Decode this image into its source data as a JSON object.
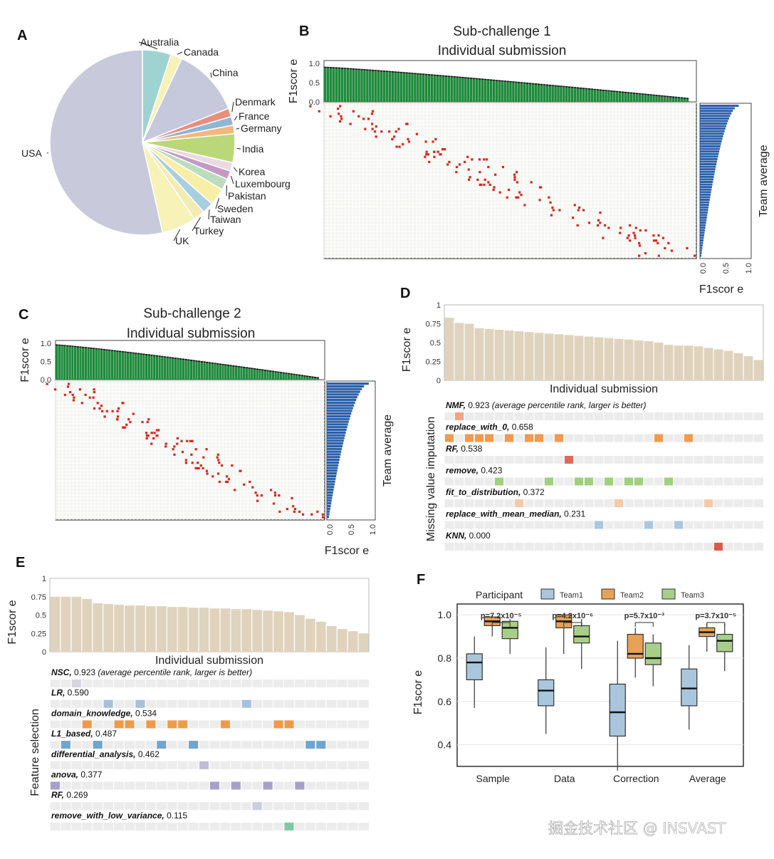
{
  "panels": {
    "A": {
      "letter": "A"
    },
    "B": {
      "letter": "B",
      "title_line1": "Sub-challenge 1",
      "title_line2": "Individual submission",
      "y_label": "F1scor e",
      "side_label": "Team average",
      "bottom_label": "F1scor e",
      "top_ticks": [
        "1.0",
        "0.5",
        "0.0"
      ],
      "side_ticks": [
        "0.0",
        "0.5",
        "1.0"
      ]
    },
    "C": {
      "letter": "C",
      "title_line1": "Sub-challenge 2",
      "title_line2": "Individual submission",
      "y_label": "F1scor e",
      "side_label": "Team average",
      "bottom_label": "F1scor e",
      "top_ticks": [
        "1.0",
        "0.5",
        "0.0"
      ],
      "side_ticks": [
        "0.0",
        "0.5",
        "1.0"
      ]
    },
    "D": {
      "letter": "D",
      "y_label": "F1scor e",
      "x_label": "Individual submission",
      "side_label": "Missing value imputation",
      "y_ticks": [
        "1",
        "0.75",
        "0.5",
        "0.25",
        "0"
      ],
      "note": "(average percentile rank, larger is better)"
    },
    "E": {
      "letter": "E",
      "y_label": "F1scor e",
      "x_label": "Individual submission",
      "side_label": "Feature selection",
      "y_ticks": [
        "1",
        "0.75",
        "0.5",
        "0.25",
        "0"
      ],
      "note": "(average percentile rank, larger is better)"
    },
    "F": {
      "letter": "F",
      "legend_title": "Participant",
      "y_label": "F1scor e",
      "y_ticks": [
        "1.0",
        "0.8",
        "0.6",
        "0.4"
      ]
    }
  },
  "watermark": "掘金技术社区 @ INSVAST",
  "chart_data": [
    {
      "panel": "A",
      "type": "pie",
      "labels": [
        "Australia",
        "Canada",
        "China",
        "Denmark",
        "France",
        "Germany",
        "India",
        "Korea",
        "Luxembourg",
        "Pakistan",
        "Sweden",
        "Taiwan",
        "Turkey",
        "UK",
        "USA"
      ],
      "values": [
        5,
        2,
        12,
        1.5,
        1.5,
        1.5,
        5,
        1.5,
        1.5,
        2,
        3,
        2,
        2,
        6,
        53.5
      ],
      "colors": [
        "#9fd3d2",
        "#f6f2b8",
        "#c6c8dc",
        "#e88e7f",
        "#8eb5d4",
        "#f2b87a",
        "#bad77a",
        "#ead9e2",
        "#c49ac4",
        "#bcddbd",
        "#f7efa8",
        "#a7cfe0",
        "#f3ecb2",
        "#f6f2b8",
        "#c8cadc"
      ]
    },
    {
      "panel": "B",
      "type": "bar",
      "x_label": "",
      "y_label": "F1scor e",
      "ylim": [
        0,
        1.0
      ],
      "submission_scores_start": 0.92,
      "submission_scores_end": 0.08,
      "n_submissions": 130,
      "team_average_start": 0.85,
      "team_average_end": 0.03,
      "n_teams": 60
    },
    {
      "panel": "C",
      "type": "bar",
      "x_label": "",
      "y_label": "F1scor e",
      "ylim": [
        0,
        1.0
      ],
      "submission_scores_start": 0.98,
      "submission_scores_end": 0.04,
      "n_submissions": 100,
      "team_average_start": 0.98,
      "team_average_end": 0.05,
      "n_teams": 50
    },
    {
      "panel": "D",
      "type": "bar",
      "x_label": "Individual submission",
      "y_label": "F1scor e",
      "ylim": [
        0,
        1
      ],
      "values": [
        0.83,
        0.76,
        0.75,
        0.69,
        0.68,
        0.67,
        0.66,
        0.65,
        0.64,
        0.63,
        0.62,
        0.61,
        0.6,
        0.59,
        0.58,
        0.57,
        0.56,
        0.55,
        0.54,
        0.53,
        0.52,
        0.5,
        0.47,
        0.46,
        0.46,
        0.45,
        0.43,
        0.41,
        0.39,
        0.36,
        0.32,
        0.27
      ],
      "methods": [
        {
          "name": "NMF",
          "score": "0.923",
          "color": "#f2a482",
          "marks": [
            1
          ]
        },
        {
          "name": "replace_with_0",
          "score": "0.658",
          "color": "#f29a4d",
          "marks": [
            0,
            2,
            3,
            4,
            6,
            8,
            9,
            11,
            21,
            24
          ]
        },
        {
          "name": "RF",
          "score": "0.538",
          "color": "#e06a5a",
          "marks": [
            12
          ]
        },
        {
          "name": "remove",
          "score": "0.423",
          "color": "#9fd07d",
          "marks": [
            5,
            10,
            13,
            14,
            16,
            18,
            19,
            22
          ]
        },
        {
          "name": "fit_to_distribution",
          "score": "0.372",
          "color": "#f7c9a7",
          "marks": [
            7,
            17,
            26
          ]
        },
        {
          "name": "replace_with_mean_median",
          "score": "0.231",
          "color": "#a8c7e0",
          "marks": [
            15,
            20,
            23
          ]
        },
        {
          "name": "KNN",
          "score": "0.000",
          "color": "#dd5a4a",
          "marks": [
            27
          ]
        }
      ]
    },
    {
      "panel": "E",
      "type": "bar",
      "x_label": "Individual submission",
      "y_label": "F1scor e",
      "ylim": [
        0,
        1
      ],
      "values": [
        0.75,
        0.75,
        0.75,
        0.72,
        0.66,
        0.65,
        0.64,
        0.63,
        0.63,
        0.62,
        0.62,
        0.61,
        0.61,
        0.6,
        0.6,
        0.59,
        0.59,
        0.58,
        0.58,
        0.57,
        0.56,
        0.55,
        0.54,
        0.5,
        0.45,
        0.41,
        0.35,
        0.31,
        0.28,
        0.25
      ],
      "methods": [
        {
          "name": "NSC",
          "score": "0.923",
          "color": "#d3d6df",
          "marks": [
            2
          ]
        },
        {
          "name": "LR",
          "score": "0.590",
          "color": "#a6c1dd",
          "marks": [
            5,
            8,
            18
          ]
        },
        {
          "name": "domain_knowledge",
          "score": "0.534",
          "color": "#f09a48",
          "marks": [
            3,
            6,
            7,
            9,
            11,
            12,
            16,
            21,
            22
          ]
        },
        {
          "name": "L1_based",
          "score": "0.487",
          "color": "#6ea6cf",
          "marks": [
            1,
            4,
            10,
            13,
            24,
            25
          ]
        },
        {
          "name": "differential_analysis",
          "score": "0.462",
          "color": "#c1bad8",
          "marks": [
            14
          ]
        },
        {
          "name": "anova",
          "score": "0.377",
          "color": "#a7a0cc",
          "marks": [
            0,
            15,
            17,
            20,
            23
          ]
        },
        {
          "name": "RF",
          "score": "0.269",
          "color": "#c9cfe2",
          "marks": [
            19
          ]
        },
        {
          "name": "remove_with_low_variance",
          "score": "0.115",
          "color": "#7fc7a7",
          "marks": [
            22
          ]
        }
      ]
    },
    {
      "panel": "F",
      "type": "box",
      "x_label": "",
      "y_label": "F1scor e",
      "ylim": [
        0.3,
        1.05
      ],
      "categories": [
        "Sample",
        "Data",
        "Correction",
        "Average"
      ],
      "p_values": [
        "p=7.2x10⁻⁵",
        "p=4.2x10⁻⁶",
        "p=5.7x10⁻³",
        "p=3.7x10⁻⁵"
      ],
      "series": [
        {
          "name": "Team1",
          "color": "#a9c6dc",
          "boxes": [
            {
              "min": 0.57,
              "q1": 0.7,
              "median": 0.78,
              "q3": 0.82,
              "max": 0.9
            },
            {
              "min": 0.45,
              "q1": 0.58,
              "median": 0.65,
              "q3": 0.7,
              "max": 0.85
            },
            {
              "min": 0.28,
              "q1": 0.44,
              "median": 0.55,
              "q3": 0.68,
              "max": 0.88
            },
            {
              "min": 0.47,
              "q1": 0.58,
              "median": 0.66,
              "q3": 0.75,
              "max": 0.86
            }
          ]
        },
        {
          "name": "Team2",
          "color": "#e8a256",
          "boxes": [
            {
              "min": 0.9,
              "q1": 0.95,
              "median": 0.97,
              "q3": 0.99,
              "max": 1.0
            },
            {
              "min": 0.82,
              "q1": 0.94,
              "median": 0.97,
              "q3": 1.0,
              "max": 1.0
            },
            {
              "min": 0.71,
              "q1": 0.8,
              "median": 0.82,
              "q3": 0.91,
              "max": 0.94
            },
            {
              "min": 0.83,
              "q1": 0.9,
              "median": 0.92,
              "q3": 0.94,
              "max": 0.96
            }
          ]
        },
        {
          "name": "Team3",
          "color": "#a8cf8a",
          "boxes": [
            {
              "min": 0.82,
              "q1": 0.89,
              "median": 0.94,
              "q3": 0.97,
              "max": 0.98
            },
            {
              "min": 0.75,
              "q1": 0.87,
              "median": 0.9,
              "q3": 0.95,
              "max": 0.98
            },
            {
              "min": 0.67,
              "q1": 0.77,
              "median": 0.8,
              "q3": 0.87,
              "max": 0.91
            },
            {
              "min": 0.74,
              "q1": 0.83,
              "median": 0.88,
              "q3": 0.91,
              "max": 0.96
            }
          ]
        }
      ]
    }
  ]
}
